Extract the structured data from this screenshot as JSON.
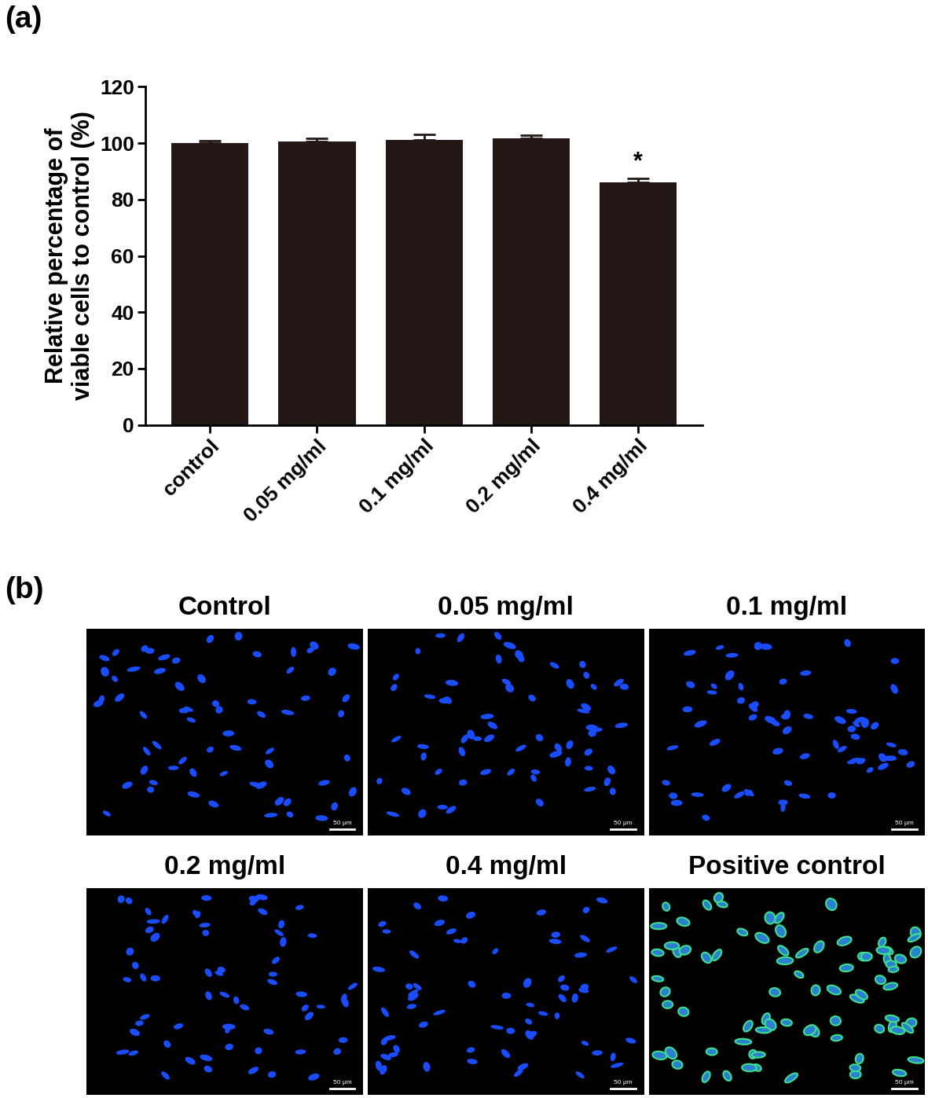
{
  "chart_data": {
    "type": "bar",
    "panel_label": "(a)",
    "y_label": "Relative percentage of\nviable cells to control (%)",
    "categories": [
      "control",
      "0.05 mg/ml",
      "0.1 mg/ml",
      "0.2 mg/ml",
      "0.4 mg/ml"
    ],
    "values": [
      100,
      100.6,
      101,
      101.7,
      86
    ],
    "errors": [
      0.8,
      1.2,
      2,
      1.2,
      1.6
    ],
    "color": "#231815",
    "ylim": [
      0,
      120
    ],
    "yticks": [
      0,
      20,
      40,
      60,
      80,
      100,
      120
    ],
    "annotations": [
      {
        "category": "0.4 mg/ml",
        "text": "*"
      }
    ]
  },
  "images": {
    "panel_label": "(b)",
    "scale_bar": "50 μm",
    "panels": [
      "Control",
      "0.05 mg/ml",
      "0.1 mg/ml",
      "0.2 mg/ml",
      "0.4 mg/ml",
      "Positive control"
    ]
  }
}
